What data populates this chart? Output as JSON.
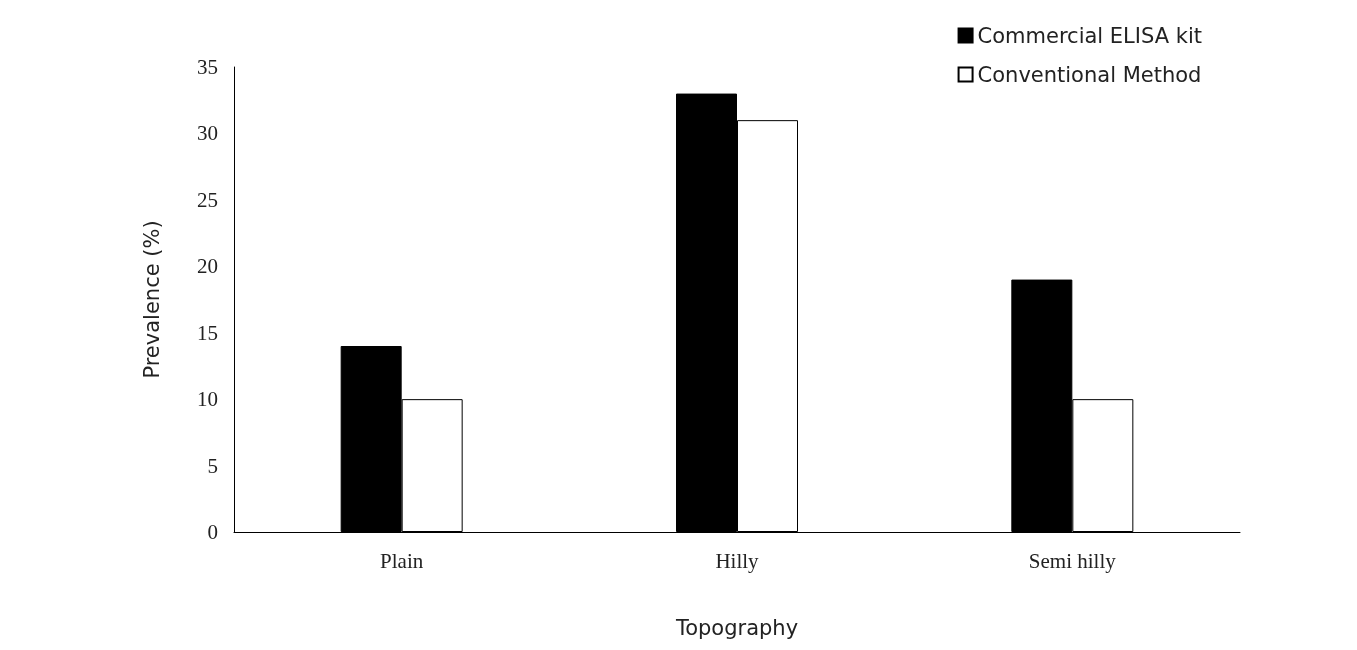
{
  "chart_data": {
    "type": "bar",
    "xlabel": "Topography",
    "ylabel": "Prevalence (%)",
    "categories": [
      "Plain",
      "Hilly",
      "Semi hilly"
    ],
    "series": [
      {
        "name": "Commercial ELISA kit",
        "color": "#000000",
        "values": [
          14,
          33,
          19
        ]
      },
      {
        "name": "Conventional Method",
        "color": "#ffffff",
        "values": [
          10,
          31,
          10
        ]
      }
    ],
    "ylim": [
      0,
      35
    ],
    "yticks": [
      0,
      5,
      10,
      15,
      20,
      25,
      30,
      35
    ],
    "grid": false,
    "legend": "top right"
  }
}
